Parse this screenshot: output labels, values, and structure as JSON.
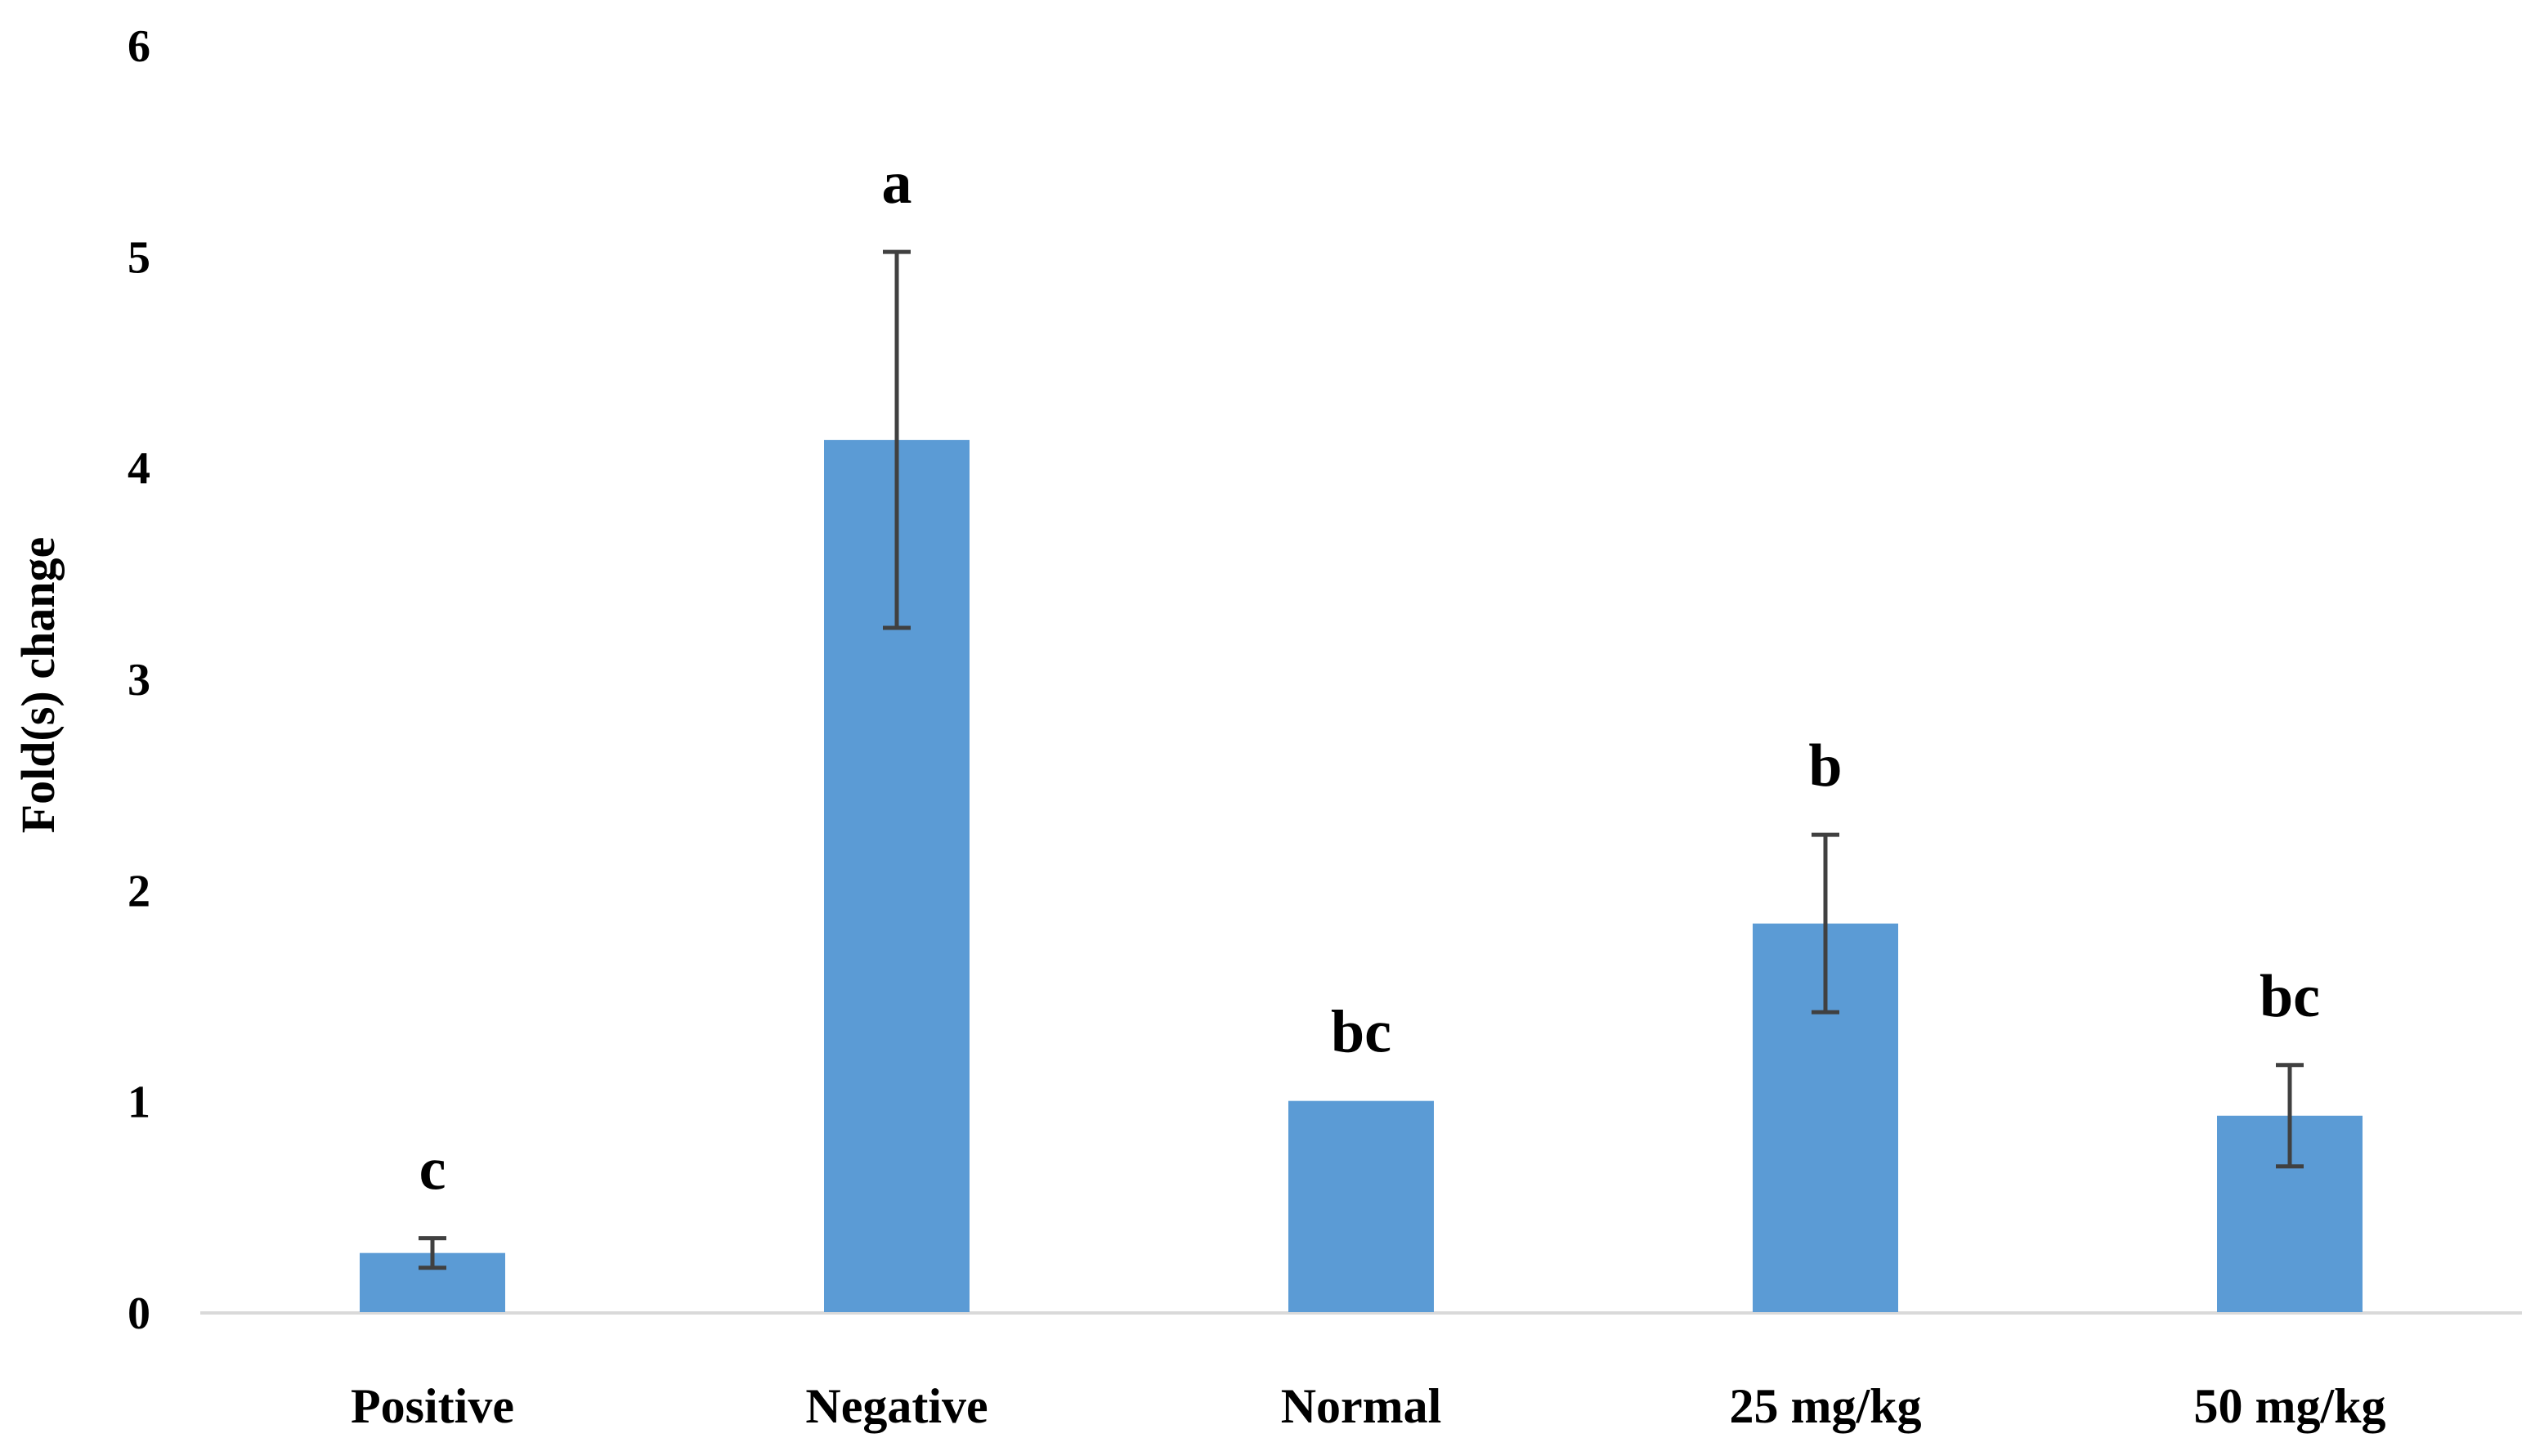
{
  "chart_data": {
    "type": "bar",
    "title": "",
    "xlabel": "",
    "ylabel": "Fold(s) change",
    "ylim": [
      0,
      6
    ],
    "yticks": [
      "0",
      "1",
      "2",
      "3",
      "4",
      "5",
      "6"
    ],
    "grid": false,
    "categories": [
      "Positive",
      "Negative",
      "Normal",
      "25 mg/kg",
      "50 mg/kg"
    ],
    "values": [
      0.28,
      4.13,
      1.0,
      1.84,
      0.93
    ],
    "errors": [
      0.07,
      0.89,
      0.0,
      0.42,
      0.24
    ],
    "significance_labels": [
      "c",
      "a",
      "bc",
      "b",
      "bc"
    ],
    "colors": {
      "bar": "#5b9bd5",
      "error_bar": "#404040",
      "axis": "#d9d9d9"
    }
  }
}
